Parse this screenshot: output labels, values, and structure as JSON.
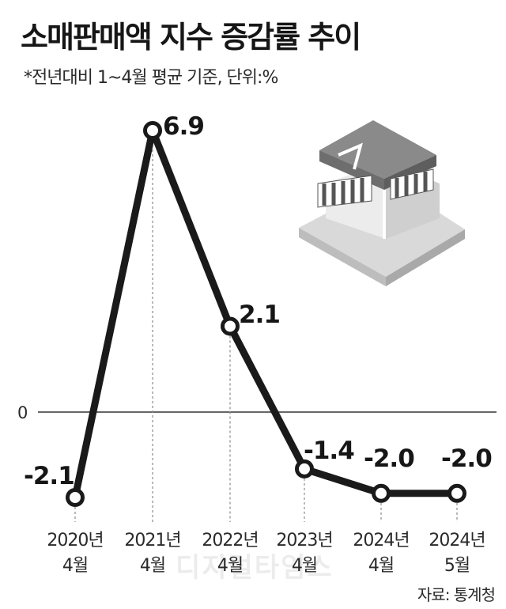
{
  "header": {
    "title": "소매판매액 지수 증감률 추이",
    "subtitle": "*전년대비 1~4월 평균 기준, 단위:%"
  },
  "footer": {
    "source": "자료: 통계청",
    "watermark": "디지털타임스"
  },
  "chart_data": {
    "type": "line",
    "categories": [
      [
        "2020년",
        "4월"
      ],
      [
        "2021년",
        "4월"
      ],
      [
        "2022년",
        "4월"
      ],
      [
        "2023년",
        "4월"
      ],
      [
        "2024년",
        "4월"
      ],
      [
        "2024년",
        "5월"
      ]
    ],
    "values": [
      -2.1,
      6.9,
      2.1,
      -1.4,
      -2.0,
      -2.0
    ],
    "value_labels": [
      "-2.1",
      "6.9",
      "2.1",
      "-1.4",
      "-2.0",
      "-2.0"
    ],
    "zero_label": "0",
    "ylim": [
      -2.1,
      6.9
    ],
    "grid": false,
    "line_color": "#1a1a1a",
    "marker_fill": "#ffffff"
  }
}
